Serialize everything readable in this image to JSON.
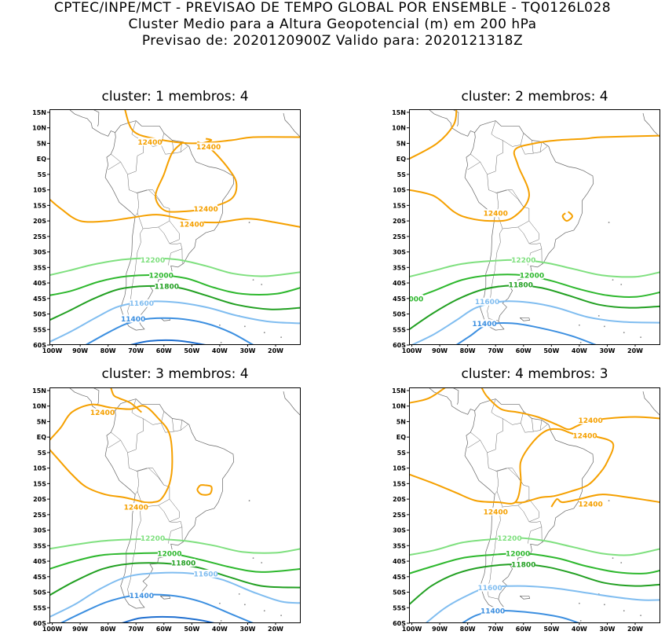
{
  "header": {
    "line1": "CPTEC/INPE/MCT - PREVISAO DE TEMPO GLOBAL POR ENSEMBLE - TQ0126L028",
    "line2": "Cluster Medio para a Altura Geopotencial (m) em 200 hPa",
    "line3": "Previsao de: 2020120900Z    Valido para: 2020121318Z"
  },
  "axes": {
    "lat_labels": [
      "15N",
      "10N",
      "5N",
      "EQ",
      "5S",
      "10S",
      "15S",
      "20S",
      "25S",
      "30S",
      "35S",
      "40S",
      "45S",
      "50S",
      "55S",
      "60S"
    ],
    "lon_labels": [
      "100W",
      "90W",
      "80W",
      "70W",
      "60W",
      "50W",
      "40W",
      "30W",
      "20W"
    ]
  },
  "colors": {
    "c12400": "#f5a000",
    "c12200": "#7fe07f",
    "c12000": "#2eb82e",
    "c11800": "#22a022",
    "c11600": "#80bdf0",
    "c11400": "#3c8fe0",
    "c11200": "#1f6fd0",
    "coast": "#666666"
  },
  "panels": [
    {
      "title": "cluster: 1   membros: 4",
      "labels": [
        {
          "text": "12400",
          "lon": -65,
          "lat": 5.5,
          "color": "c12400"
        },
        {
          "text": "12400",
          "lon": -44,
          "lat": 4,
          "color": "c12400"
        },
        {
          "text": "12400",
          "lon": -45,
          "lat": -16,
          "color": "c12400"
        },
        {
          "text": "12400",
          "lon": -50,
          "lat": -21,
          "color": "c12400"
        },
        {
          "text": "12200",
          "lon": -64,
          "lat": -32.5,
          "color": "c12200"
        },
        {
          "text": "12000",
          "lon": -61,
          "lat": -37.5,
          "color": "c12000"
        },
        {
          "text": "11800",
          "lon": -59,
          "lat": -41,
          "color": "c11800"
        },
        {
          "text": "11600",
          "lon": -68,
          "lat": -46.5,
          "color": "c11600"
        },
        {
          "text": "11400",
          "lon": -71,
          "lat": -51.5,
          "color": "c11400"
        }
      ]
    },
    {
      "title": "cluster: 2   membros: 4",
      "labels": [
        {
          "text": "12400",
          "lon": -70,
          "lat": -17.5,
          "color": "c12400"
        },
        {
          "text": "12200",
          "lon": -60,
          "lat": -32.5,
          "color": "c12200"
        },
        {
          "text": "12000",
          "lon": -57,
          "lat": -37.5,
          "color": "c12000"
        },
        {
          "text": "11800",
          "lon": -61,
          "lat": -40.5,
          "color": "c11800"
        },
        {
          "text": "000",
          "lon": -98.5,
          "lat": -45,
          "color": "c12000"
        },
        {
          "text": "11600",
          "lon": -73,
          "lat": -46,
          "color": "c11600"
        },
        {
          "text": "11400",
          "lon": -74,
          "lat": -53,
          "color": "c11400"
        }
      ]
    },
    {
      "title": "cluster: 3   membros: 4",
      "labels": [
        {
          "text": "12400",
          "lon": -82,
          "lat": 8,
          "color": "c12400"
        },
        {
          "text": "12400",
          "lon": -70,
          "lat": -22.5,
          "color": "c12400"
        },
        {
          "text": "12200",
          "lon": -64,
          "lat": -32.5,
          "color": "c12200"
        },
        {
          "text": "12000",
          "lon": -58,
          "lat": -37.5,
          "color": "c12000"
        },
        {
          "text": "11800",
          "lon": -53,
          "lat": -40.5,
          "color": "c11800"
        },
        {
          "text": "11600",
          "lon": -45,
          "lat": -44,
          "color": "c11600"
        },
        {
          "text": "11400",
          "lon": -68,
          "lat": -51,
          "color": "c11400"
        }
      ]
    },
    {
      "title": "cluster: 4   membros: 3",
      "labels": [
        {
          "text": "12400",
          "lon": -36,
          "lat": 5.5,
          "color": "c12400"
        },
        {
          "text": "12400",
          "lon": -38,
          "lat": 0.5,
          "color": "c12400"
        },
        {
          "text": "12400",
          "lon": -36,
          "lat": -21.5,
          "color": "c12400"
        },
        {
          "text": "12400",
          "lon": -70,
          "lat": -24,
          "color": "c12400"
        },
        {
          "text": "12200",
          "lon": -65,
          "lat": -32.5,
          "color": "c12200"
        },
        {
          "text": "12000",
          "lon": -62,
          "lat": -37.5,
          "color": "c12000"
        },
        {
          "text": "11800",
          "lon": -60,
          "lat": -41,
          "color": "c11800"
        },
        {
          "text": "11600",
          "lon": -72,
          "lat": -48.5,
          "color": "c11600"
        },
        {
          "text": "11400",
          "lon": -71,
          "lat": -56,
          "color": "c11400"
        }
      ]
    }
  ]
}
